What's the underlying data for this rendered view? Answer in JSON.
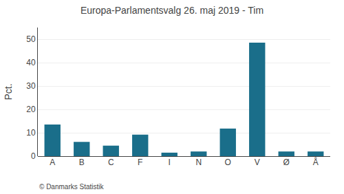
{
  "chart_data": {
    "type": "bar",
    "title": "Europa-Parlamentsvalg 26. maj 2019 - Tim",
    "categories": [
      "A",
      "B",
      "C",
      "F",
      "I",
      "N",
      "O",
      "V",
      "Ø",
      "Å"
    ],
    "values": [
      13.5,
      6.1,
      4.5,
      9.2,
      1.5,
      2.0,
      11.8,
      48.5,
      2.0,
      2.0
    ],
    "color": "#1a6e8a",
    "ylabel": "Pct.",
    "annotations": [
      "© Danmarks Statistik"
    ],
    "ylim": [
      0,
      55
    ],
    "yticks": [
      0,
      10,
      20,
      30,
      40,
      50
    ],
    "grid": true
  }
}
